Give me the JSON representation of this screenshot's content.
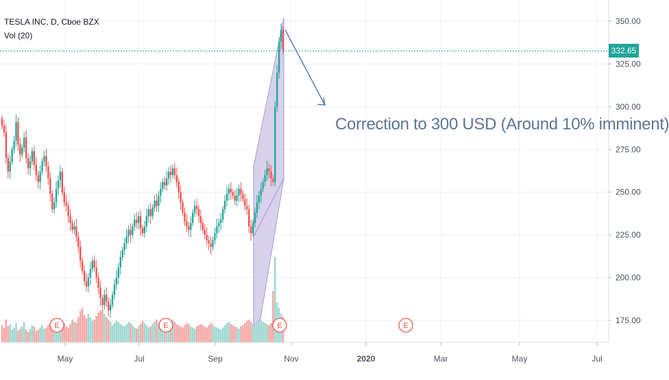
{
  "chart_data": {
    "type": "candlestick",
    "legend": {
      "symbol_line": "TESLA INC, D, Cboe BZX",
      "volume_line": "Vol (20)"
    },
    "annotation_text": "Correction to 300 USD (Around 10% imminent)",
    "last_price_label": "332.65",
    "last_price": 332.65,
    "y_axis": {
      "ticks": [
        "175.00",
        "200.00",
        "225.00",
        "250.00",
        "275.00",
        "300.00",
        "325.00",
        "350.00"
      ],
      "tick_values": [
        175,
        200,
        225,
        250,
        275,
        300,
        325,
        350
      ],
      "ylim": [
        162,
        365
      ]
    },
    "x_axis": {
      "ticks": [
        "May",
        "Jul",
        "Sep",
        "Nov",
        "2020",
        "Mar",
        "May",
        "Jul"
      ],
      "bold_ticks": [
        "2020"
      ]
    },
    "earnings_markers": [
      "E",
      "E",
      "E",
      "E"
    ],
    "colors": {
      "up": "#26a69a",
      "down": "#ef5350",
      "volume_up": "#9fd8d1",
      "volume_down": "#f5a9a6",
      "price_line": "#1ea699",
      "annotation": "#5d7595",
      "channel_fill": "#c9c1e6",
      "earnings": "#ef5350"
    },
    "grid": true,
    "close_series": [
      289,
      285,
      270,
      262,
      268,
      275,
      280,
      291,
      278,
      272,
      276,
      282,
      270,
      264,
      268,
      274,
      266,
      260,
      256,
      262,
      268,
      271,
      265,
      258,
      249,
      240,
      244,
      252,
      257,
      262,
      250,
      244,
      242,
      236,
      232,
      228,
      230,
      224,
      218,
      210,
      204,
      198,
      195,
      200,
      205,
      210,
      206,
      200,
      194,
      188,
      184,
      190,
      186,
      181,
      184,
      190,
      196,
      200,
      206,
      212,
      216,
      220,
      224,
      228,
      225,
      230,
      234,
      232,
      236,
      229,
      226,
      230,
      236,
      240,
      236,
      241,
      245,
      242,
      248,
      252,
      256,
      254,
      258,
      262,
      260,
      264,
      260,
      256,
      250,
      244,
      238,
      233,
      230,
      228,
      232,
      238,
      242,
      240,
      236,
      232,
      228,
      225,
      222,
      220,
      218,
      222,
      226,
      230,
      232,
      234,
      240,
      245,
      249,
      252,
      250,
      248,
      245,
      248,
      252,
      249,
      246,
      242,
      240,
      230,
      226,
      232,
      238,
      244,
      248,
      252,
      256,
      260,
      264,
      262,
      258,
      256,
      300,
      320,
      338,
      345,
      332.65
    ],
    "volume_series": [
      30,
      25,
      40,
      28,
      32,
      22,
      26,
      34,
      20,
      24,
      28,
      36,
      22,
      18,
      24,
      30,
      28,
      20,
      22,
      26,
      30,
      24,
      26,
      30,
      34,
      38,
      30,
      26,
      22,
      24,
      30,
      34,
      28,
      26,
      32,
      40,
      36,
      34,
      44,
      55,
      60,
      48,
      42,
      50,
      44,
      38,
      40,
      46,
      52,
      56,
      58,
      50,
      44,
      40,
      36,
      30,
      34,
      38,
      36,
      32,
      30,
      28,
      32,
      36,
      34,
      30,
      26,
      24,
      28,
      32,
      38,
      34,
      30,
      26,
      28,
      32,
      36,
      40,
      34,
      30,
      28,
      26,
      30,
      34,
      38,
      40,
      36,
      32,
      30,
      28,
      26,
      30,
      34,
      32,
      28,
      26,
      24,
      28,
      30,
      32,
      30,
      28,
      26,
      30,
      34,
      32,
      28,
      26,
      24,
      22,
      26,
      30,
      34,
      36,
      32,
      30,
      28,
      26,
      24,
      28,
      30,
      34,
      38,
      40,
      36,
      32,
      30,
      34,
      38,
      40,
      36,
      34,
      32,
      30,
      34,
      90,
      150,
      70,
      60,
      50,
      45
    ]
  }
}
